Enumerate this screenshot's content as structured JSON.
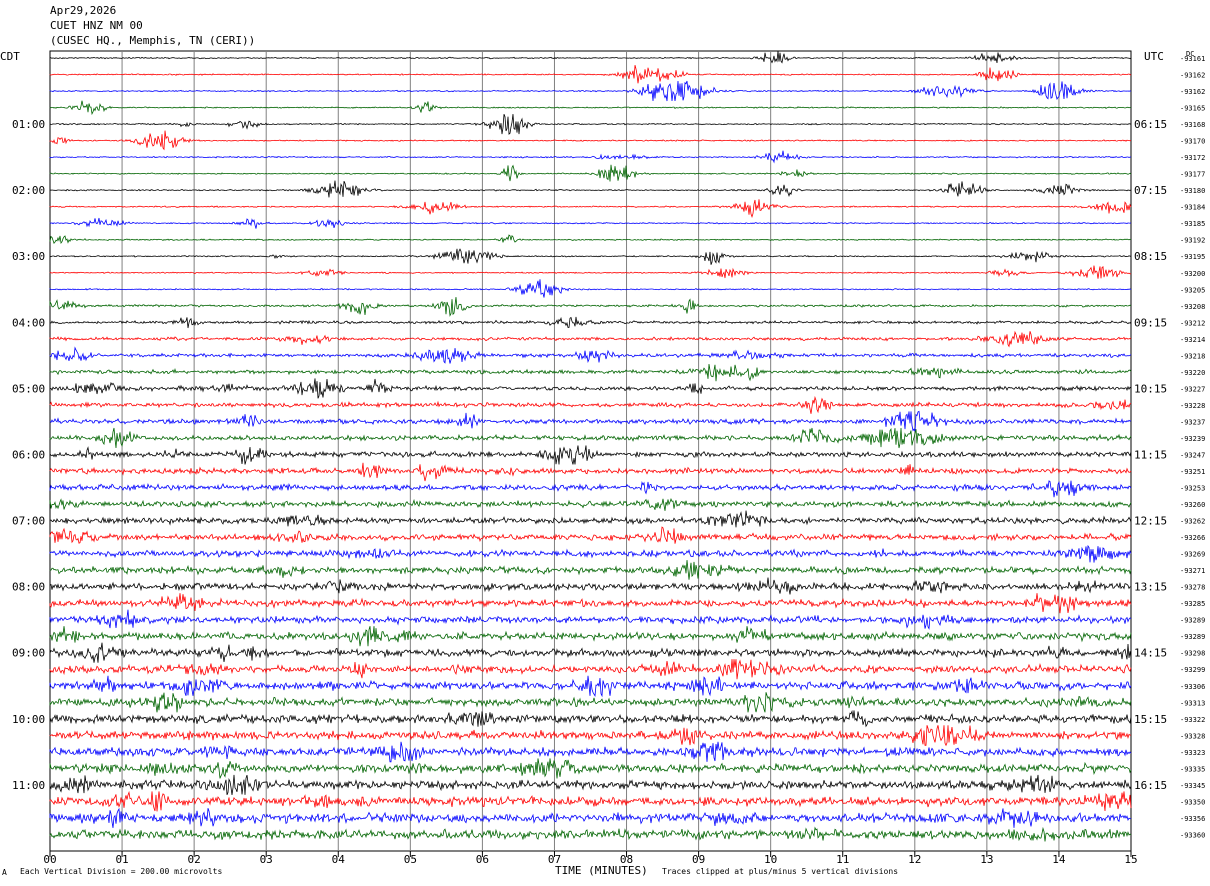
{
  "header": {
    "date": "Apr29,2026",
    "station": "CUET HNZ NM 00",
    "location": "(CUSEC HQ., Memphis, TN (CERI))"
  },
  "left_timezone": "CDT",
  "right_timezone": "UTC",
  "dc_label": "DC",
  "colors": {
    "trace_cycle": [
      "#000000",
      "#ff0000",
      "#0000ff",
      "#006400"
    ],
    "grid": "#808080"
  },
  "footer": {
    "scale_note": "Each Vertical Division =  200.00 microvolts",
    "clip_note": "Traces clipped at plus/minus 5 vertical divisions",
    "corner_mark": "A"
  },
  "chart_data": {
    "type": "helicorder",
    "xlabel": "TIME (MINUTES)",
    "x_ticks": [
      "00",
      "01",
      "02",
      "03",
      "04",
      "05",
      "06",
      "07",
      "08",
      "09",
      "10",
      "11",
      "12",
      "13",
      "14",
      "15"
    ],
    "xlim": [
      0,
      15
    ],
    "left_hour_labels": [
      "01:00",
      "02:00",
      "03:00",
      "04:00",
      "05:00",
      "06:00",
      "07:00",
      "08:00",
      "09:00",
      "10:00",
      "11:00"
    ],
    "right_hour_labels": [
      "06:15",
      "07:15",
      "08:15",
      "09:15",
      "10:15",
      "11:15",
      "12:15",
      "13:15",
      "14:15",
      "15:15",
      "16:15"
    ],
    "trace_dc_offsets": [
      "-93161",
      "-93162",
      "-93162",
      "-93165",
      "-93168",
      "-93170",
      "-93172",
      "-93177",
      "-93180",
      "-93184",
      "-93185",
      "-93192",
      "-93195",
      "-93200",
      "-93205",
      "-93208",
      "-93212",
      "-93214",
      "-93218",
      "-93220",
      "-93227",
      "-93228",
      "-93237",
      "-93239",
      "-93247",
      "-93251",
      "-93253",
      "-93260",
      "-93262",
      "-93266",
      "-93269",
      "-93271",
      "-93278",
      "-93285",
      "-93289",
      "-93289",
      "-93298",
      "-93299",
      "-93306",
      "-93313",
      "-93322",
      "-93328",
      "-93323",
      "-93335",
      "-93345",
      "-93350",
      "-93356",
      "-93360"
    ]
  }
}
